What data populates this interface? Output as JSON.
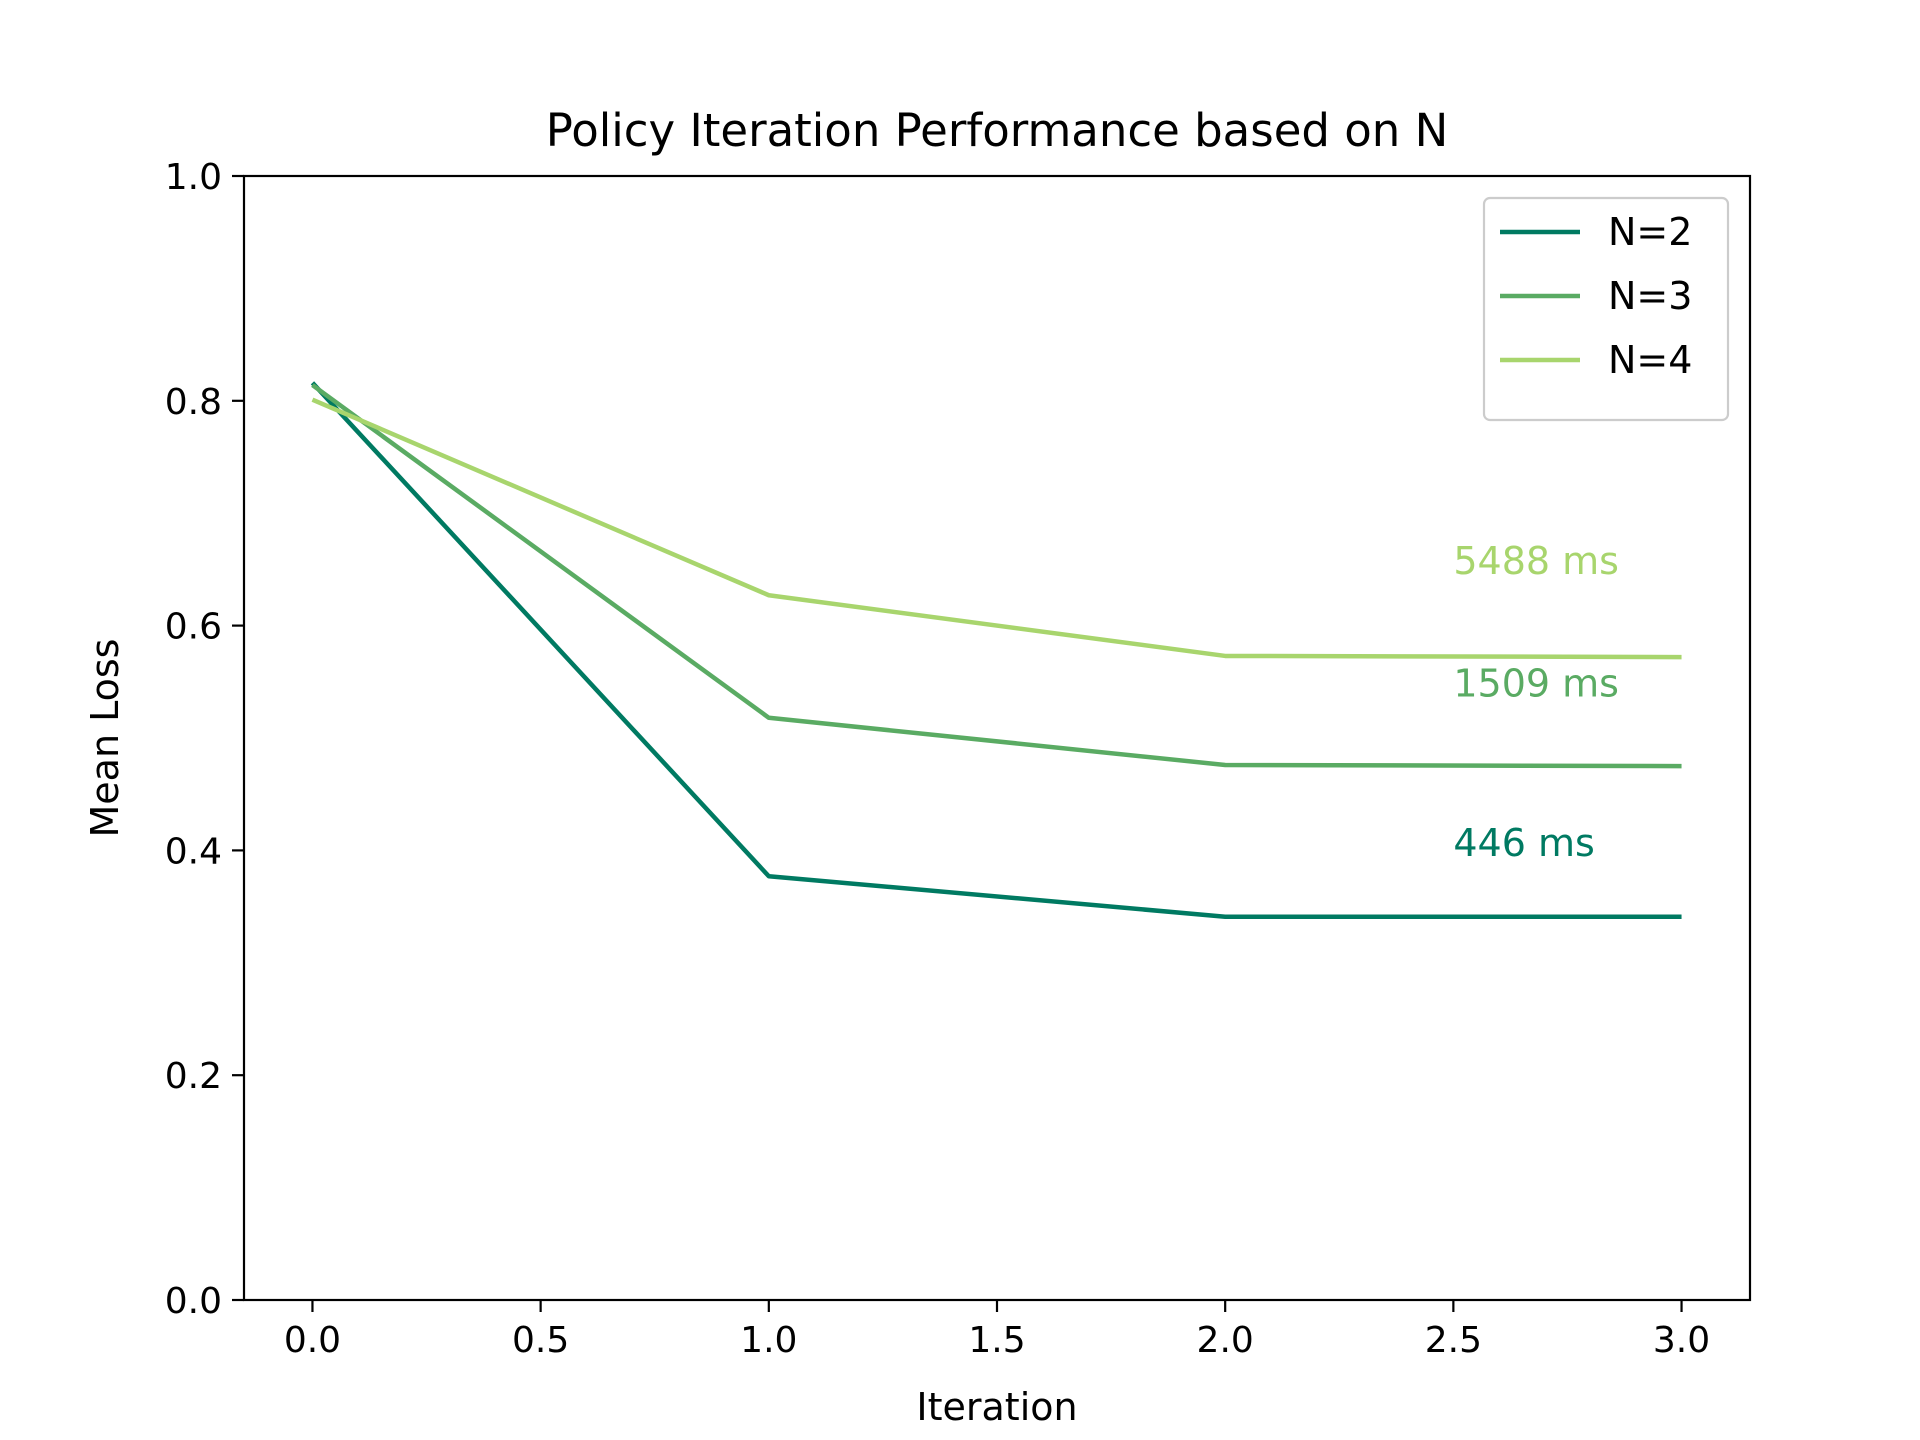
{
  "chart_data": {
    "type": "line",
    "title": "Policy Iteration Performance based on N",
    "xlabel": "Iteration",
    "ylabel": "Mean Loss",
    "xlim": [
      -0.15,
      3.15
    ],
    "ylim": [
      0.0,
      1.0
    ],
    "xticks": [
      0.0,
      0.5,
      1.0,
      1.5,
      2.0,
      2.5,
      3.0
    ],
    "xtick_labels": [
      "0.0",
      "0.5",
      "1.0",
      "1.5",
      "2.0",
      "2.5",
      "3.0"
    ],
    "yticks": [
      0.0,
      0.2,
      0.4,
      0.6,
      0.8,
      1.0
    ],
    "ytick_labels": [
      "0.0",
      "0.2",
      "0.4",
      "0.6",
      "0.8",
      "1.0"
    ],
    "grid": false,
    "legend_position": "top-right",
    "x": [
      0,
      1,
      2,
      3
    ],
    "series": [
      {
        "name": "N=2",
        "color": "#007a62",
        "values": [
          0.816,
          0.377,
          0.341,
          0.341
        ]
      },
      {
        "name": "N=3",
        "color": "#5aab63",
        "values": [
          0.814,
          0.518,
          0.476,
          0.475
        ]
      },
      {
        "name": "N=4",
        "color": "#a8d56d",
        "values": [
          0.801,
          0.627,
          0.573,
          0.572
        ]
      }
    ],
    "annotations": [
      {
        "text": "446 ms",
        "x": 2.5,
        "y": 0.395,
        "color": "#007a62"
      },
      {
        "text": "1509 ms",
        "x": 2.5,
        "y": 0.537,
        "color": "#5aab63"
      },
      {
        "text": "5488 ms",
        "x": 2.5,
        "y": 0.646,
        "color": "#a8d56d"
      }
    ]
  }
}
